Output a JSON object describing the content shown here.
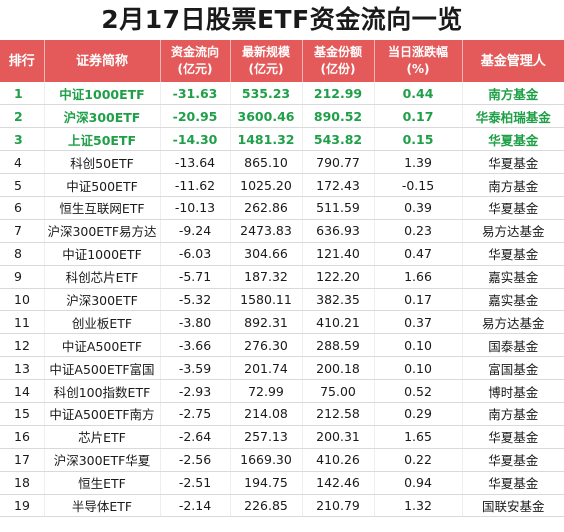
{
  "title": "2月17日股票ETF资金流向一览",
  "headers": {
    "rank": "排行",
    "name": "证券简称",
    "flow": "资金流向",
    "flow_unit": "(亿元)",
    "scale": "最新规模",
    "scale_unit": "(亿元)",
    "shares": "基金份额",
    "shares_unit": "(亿份)",
    "change": "当日涨跌幅",
    "change_unit": "(%)",
    "manager": "基金管理人"
  },
  "rows": [
    {
      "rank": "1",
      "name": "中证1000ETF",
      "flow": "-31.63",
      "scale": "535.23",
      "shares": "212.99",
      "change": "0.44",
      "manager": "南方基金"
    },
    {
      "rank": "2",
      "name": "沪深300ETF",
      "flow": "-20.95",
      "scale": "3600.46",
      "shares": "890.52",
      "change": "0.17",
      "manager": "华泰柏瑞基金"
    },
    {
      "rank": "3",
      "name": "上证50ETF",
      "flow": "-14.30",
      "scale": "1481.32",
      "shares": "543.82",
      "change": "0.15",
      "manager": "华夏基金"
    },
    {
      "rank": "4",
      "name": "科创50ETF",
      "flow": "-13.64",
      "scale": "865.10",
      "shares": "790.77",
      "change": "1.39",
      "manager": "华夏基金"
    },
    {
      "rank": "5",
      "name": "中证500ETF",
      "flow": "-11.62",
      "scale": "1025.20",
      "shares": "172.43",
      "change": "-0.15",
      "manager": "南方基金"
    },
    {
      "rank": "6",
      "name": "恒生互联网ETF",
      "flow": "-10.13",
      "scale": "262.86",
      "shares": "511.59",
      "change": "0.39",
      "manager": "华夏基金"
    },
    {
      "rank": "7",
      "name": "沪深300ETF易方达",
      "flow": "-9.24",
      "scale": "2473.83",
      "shares": "636.93",
      "change": "0.23",
      "manager": "易方达基金"
    },
    {
      "rank": "8",
      "name": "中证1000ETF",
      "flow": "-6.03",
      "scale": "304.66",
      "shares": "121.40",
      "change": "0.47",
      "manager": "华夏基金"
    },
    {
      "rank": "9",
      "name": "科创芯片ETF",
      "flow": "-5.71",
      "scale": "187.32",
      "shares": "122.20",
      "change": "1.66",
      "manager": "嘉实基金"
    },
    {
      "rank": "10",
      "name": "沪深300ETF",
      "flow": "-5.32",
      "scale": "1580.11",
      "shares": "382.35",
      "change": "0.17",
      "manager": "嘉实基金"
    },
    {
      "rank": "11",
      "name": "创业板ETF",
      "flow": "-3.80",
      "scale": "892.31",
      "shares": "410.21",
      "change": "0.37",
      "manager": "易方达基金"
    },
    {
      "rank": "12",
      "name": "中证A500ETF",
      "flow": "-3.66",
      "scale": "276.30",
      "shares": "288.59",
      "change": "0.10",
      "manager": "国泰基金"
    },
    {
      "rank": "13",
      "name": "中证A500ETF富国",
      "flow": "-3.59",
      "scale": "201.74",
      "shares": "200.18",
      "change": "0.10",
      "manager": "富国基金"
    },
    {
      "rank": "14",
      "name": "科创100指数ETF",
      "flow": "-2.93",
      "scale": "72.99",
      "shares": "75.00",
      "change": "0.52",
      "manager": "博时基金"
    },
    {
      "rank": "15",
      "name": "中证A500ETF南方",
      "flow": "-2.75",
      "scale": "214.08",
      "shares": "212.58",
      "change": "0.29",
      "manager": "南方基金"
    },
    {
      "rank": "16",
      "name": "芯片ETF",
      "flow": "-2.64",
      "scale": "257.13",
      "shares": "200.31",
      "change": "1.65",
      "manager": "华夏基金"
    },
    {
      "rank": "17",
      "name": "沪深300ETF华夏",
      "flow": "-2.56",
      "scale": "1669.30",
      "shares": "410.26",
      "change": "0.22",
      "manager": "华夏基金"
    },
    {
      "rank": "18",
      "name": "恒生ETF",
      "flow": "-2.51",
      "scale": "194.75",
      "shares": "142.46",
      "change": "0.94",
      "manager": "华夏基金"
    },
    {
      "rank": "19",
      "name": "半导体ETF",
      "flow": "-2.14",
      "scale": "226.85",
      "shares": "210.79",
      "change": "1.32",
      "manager": "国联安基金"
    }
  ],
  "colors": {
    "header_bg": "#e45a5a",
    "header_text": "#ffffff",
    "top3_text": "#1fa048",
    "body_text": "#1a1a1a"
  }
}
